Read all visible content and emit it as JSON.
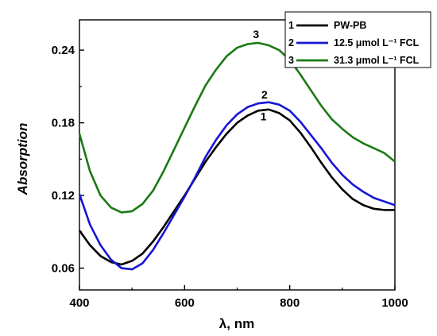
{
  "chart_data": {
    "type": "line",
    "xlabel": "λ, nm",
    "ylabel": "Absorption",
    "xlim": [
      400,
      1000
    ],
    "ylim": [
      0.042,
      0.265
    ],
    "xticks": [
      400,
      600,
      800,
      1000
    ],
    "xtick_labels": [
      "400",
      "600",
      "800",
      "1000"
    ],
    "yticks": [
      0.06,
      0.12,
      0.18,
      0.24
    ],
    "ytick_labels": [
      "0.06",
      "0.12",
      "0.18",
      "0.24"
    ],
    "grid": false,
    "legend_position": "top-right",
    "series": [
      {
        "id": "1",
        "name": "PW-PB",
        "color": "#000000",
        "curve_label": "1",
        "curve_label_at": [
          750,
          0.182
        ],
        "x": [
          400,
          420,
          440,
          460,
          480,
          500,
          520,
          540,
          560,
          580,
          600,
          620,
          640,
          660,
          680,
          700,
          720,
          740,
          760,
          780,
          800,
          820,
          840,
          860,
          880,
          900,
          920,
          940,
          960,
          980,
          1000
        ],
        "y": [
          0.091,
          0.079,
          0.07,
          0.065,
          0.063,
          0.066,
          0.072,
          0.082,
          0.094,
          0.107,
          0.12,
          0.134,
          0.148,
          0.16,
          0.171,
          0.18,
          0.186,
          0.19,
          0.191,
          0.188,
          0.182,
          0.172,
          0.16,
          0.147,
          0.135,
          0.125,
          0.117,
          0.112,
          0.109,
          0.108,
          0.108
        ]
      },
      {
        "id": "2",
        "name": "12.5 μmol L⁻¹ FCL",
        "color": "#1515d6",
        "curve_label": "2",
        "curve_label_at": [
          752,
          0.2
        ],
        "x": [
          400,
          420,
          440,
          460,
          480,
          500,
          520,
          540,
          560,
          580,
          600,
          620,
          640,
          660,
          680,
          700,
          720,
          740,
          760,
          780,
          800,
          820,
          840,
          860,
          880,
          900,
          920,
          940,
          960,
          980,
          1000
        ],
        "y": [
          0.121,
          0.096,
          0.079,
          0.067,
          0.06,
          0.059,
          0.064,
          0.075,
          0.089,
          0.104,
          0.119,
          0.135,
          0.152,
          0.166,
          0.178,
          0.187,
          0.193,
          0.196,
          0.197,
          0.195,
          0.19,
          0.181,
          0.17,
          0.159,
          0.147,
          0.137,
          0.129,
          0.123,
          0.118,
          0.115,
          0.112
        ]
      },
      {
        "id": "3",
        "name": "31.3 μmol L⁻¹ FCL",
        "color": "#1a7a14",
        "curve_label": "3",
        "curve_label_at": [
          736,
          0.25
        ],
        "x": [
          400,
          420,
          440,
          460,
          480,
          500,
          520,
          540,
          560,
          580,
          600,
          620,
          640,
          660,
          680,
          700,
          720,
          740,
          760,
          780,
          800,
          820,
          840,
          860,
          880,
          900,
          920,
          940,
          960,
          980,
          1000
        ],
        "y": [
          0.171,
          0.14,
          0.12,
          0.11,
          0.106,
          0.107,
          0.113,
          0.124,
          0.14,
          0.158,
          0.176,
          0.194,
          0.211,
          0.224,
          0.235,
          0.242,
          0.245,
          0.246,
          0.244,
          0.24,
          0.232,
          0.22,
          0.207,
          0.194,
          0.183,
          0.175,
          0.168,
          0.163,
          0.159,
          0.155,
          0.148
        ]
      }
    ]
  }
}
